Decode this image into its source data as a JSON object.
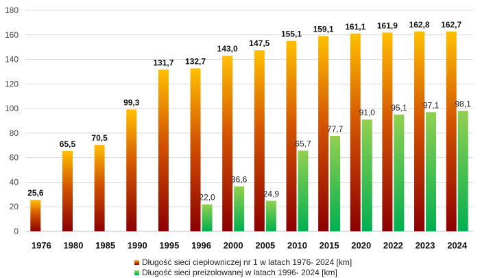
{
  "chart_data": {
    "type": "bar",
    "categories": [
      "1976",
      "1980",
      "1985",
      "1990",
      "1995",
      "1996",
      "2000",
      "2005",
      "2010",
      "2015",
      "2020",
      "2022",
      "2023",
      "2024"
    ],
    "ylim": [
      0,
      180
    ],
    "yticks": [
      0,
      20,
      40,
      60,
      80,
      100,
      120,
      140,
      160,
      180
    ],
    "grid": true,
    "legend_position": "bottom",
    "series": [
      {
        "name": "Długość sieci ciepłowniczej nr 1 w latach 1976- 2024 [km]",
        "values": [
          25.6,
          65.5,
          70.5,
          99.3,
          131.7,
          132.7,
          143.0,
          147.5,
          155.1,
          159.1,
          161.1,
          161.9,
          162.8,
          162.7
        ],
        "labels": [
          "25,6",
          "65,5",
          "70,5",
          "99,3",
          "131,7",
          "132,7",
          "143,0",
          "147,5",
          "155,1",
          "159,1",
          "161,1",
          "161,9",
          "162,8",
          "162,7"
        ],
        "color_top": "#FFC000",
        "color_bottom": "#8B0000"
      },
      {
        "name": "Długość sieci preizolowanej w latach 1996- 2024 [km]",
        "values": [
          null,
          null,
          null,
          null,
          null,
          22.0,
          36.6,
          24.9,
          65.7,
          77.7,
          91.0,
          95.1,
          97.1,
          98.1
        ],
        "labels": [
          null,
          null,
          null,
          null,
          null,
          "22,0",
          "36,6",
          "24,9",
          "65,7",
          "77,7",
          "91,0",
          "95,1",
          "97,1",
          "98,1"
        ],
        "color_top": "#92D050",
        "color_bottom": "#00B050"
      }
    ]
  }
}
